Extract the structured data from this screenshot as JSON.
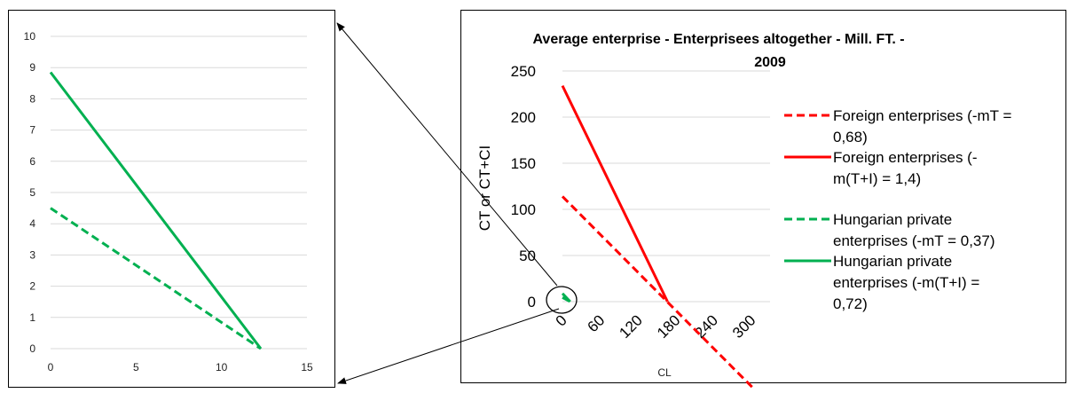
{
  "colors": {
    "foreign": "#ff0000",
    "hungarian": "#00b050",
    "grid": "#d9d9d9",
    "frame": "#000000"
  },
  "chart_data": [
    {
      "type": "line",
      "title": "",
      "xlabel": "",
      "ylabel": "",
      "xlim": [
        0,
        15
      ],
      "ylim": [
        0,
        10
      ],
      "x_ticks": [
        "0",
        "5",
        "10",
        "15"
      ],
      "y_ticks": [
        "0",
        "1",
        "2",
        "3",
        "4",
        "5",
        "6",
        "7",
        "8",
        "9",
        "10"
      ],
      "grid": "horizontal",
      "series": [
        {
          "style": "dashed",
          "color": "hungarian",
          "points": [
            [
              0,
              4.5
            ],
            [
              12.3,
              0
            ]
          ]
        },
        {
          "style": "solid",
          "color": "hungarian",
          "points": [
            [
              0,
              8.85
            ],
            [
              12.3,
              0
            ]
          ]
        }
      ]
    },
    {
      "type": "line",
      "title": "Average enterprise - Enterprisees altogether - Mill. FT. - 2009",
      "title_lines": [
        "Average enterprise - Enterprisees altogether - Mill. FT. -",
        "2009"
      ],
      "xlabel": "CL",
      "ylabel": "CT or CT+CI",
      "xlim": [
        0,
        330
      ],
      "ylim": [
        0,
        250
      ],
      "x_ticks": [
        "0",
        "60",
        "120",
        "180",
        "240",
        "300"
      ],
      "y_ticks": [
        "0",
        "50",
        "100",
        "150",
        "200",
        "250"
      ],
      "grid": "horizontal",
      "legend_position": "right",
      "series": [
        {
          "name": "Foreign enterprises (-mT = 0,68)",
          "name_lines": [
            "Foreign enterprises (-mT =",
            "0,68)"
          ],
          "style": "dashed",
          "color": "foreign",
          "points": [
            [
              0,
              114
            ],
            [
              305,
              -95
            ]
          ]
        },
        {
          "name": "Foreign enterprises (-m(T+I) = 1,4)",
          "name_lines": [
            "Foreign enterprises (-",
            "m(T+I) = 1,4)"
          ],
          "style": "solid",
          "color": "foreign",
          "points": [
            [
              0,
              234
            ],
            [
              167,
              0
            ]
          ]
        },
        {
          "name": "Hungarian private enterprises (-mT = 0,37)",
          "name_lines": [
            "Hungarian private",
            "enterprises (-mT = 0,37)"
          ],
          "style": "dashed",
          "color": "hungarian",
          "points": [
            [
              0,
              4.5
            ],
            [
              12.3,
              0
            ]
          ]
        },
        {
          "name": "Hungarian private enterprises (-m(T+I) = 0,72)",
          "name_lines": [
            "Hungarian private",
            "enterprises (-m(T+I) =",
            "0,72)"
          ],
          "style": "solid",
          "color": "hungarian",
          "points": [
            [
              0,
              8.85
            ],
            [
              12.3,
              0
            ]
          ]
        }
      ]
    }
  ]
}
